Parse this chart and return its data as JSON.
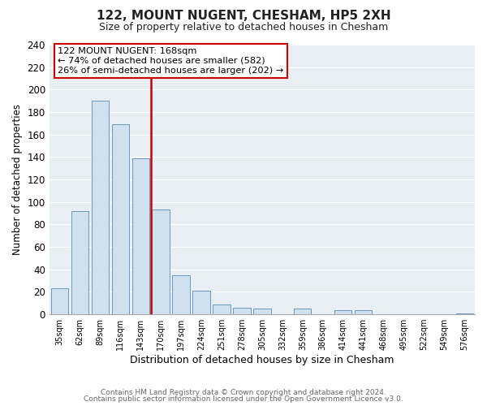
{
  "title": "122, MOUNT NUGENT, CHESHAM, HP5 2XH",
  "subtitle": "Size of property relative to detached houses in Chesham",
  "xlabel": "Distribution of detached houses by size in Chesham",
  "ylabel": "Number of detached properties",
  "bar_labels": [
    "35sqm",
    "62sqm",
    "89sqm",
    "116sqm",
    "143sqm",
    "170sqm",
    "197sqm",
    "224sqm",
    "251sqm",
    "278sqm",
    "305sqm",
    "332sqm",
    "359sqm",
    "386sqm",
    "414sqm",
    "441sqm",
    "468sqm",
    "495sqm",
    "522sqm",
    "549sqm",
    "576sqm"
  ],
  "bar_values": [
    23,
    92,
    190,
    169,
    139,
    93,
    35,
    21,
    9,
    6,
    5,
    0,
    5,
    0,
    4,
    4,
    0,
    0,
    0,
    0,
    1
  ],
  "bar_color": "#d0e0ef",
  "bar_edge_color": "#6699bb",
  "vline_x_index": 5,
  "vline_color": "#cc0000",
  "ylim": [
    0,
    240
  ],
  "yticks": [
    0,
    20,
    40,
    60,
    80,
    100,
    120,
    140,
    160,
    180,
    200,
    220,
    240
  ],
  "annotation_title": "122 MOUNT NUGENT: 168sqm",
  "annotation_line1": "← 74% of detached houses are smaller (582)",
  "annotation_line2": "26% of semi-detached houses are larger (202) →",
  "annotation_box_color": "#ffffff",
  "annotation_box_edge": "#cc0000",
  "footer_line1": "Contains HM Land Registry data © Crown copyright and database right 2024.",
  "footer_line2": "Contains public sector information licensed under the Open Government Licence v3.0.",
  "background_color": "#ffffff",
  "plot_background": "#e8eef4"
}
